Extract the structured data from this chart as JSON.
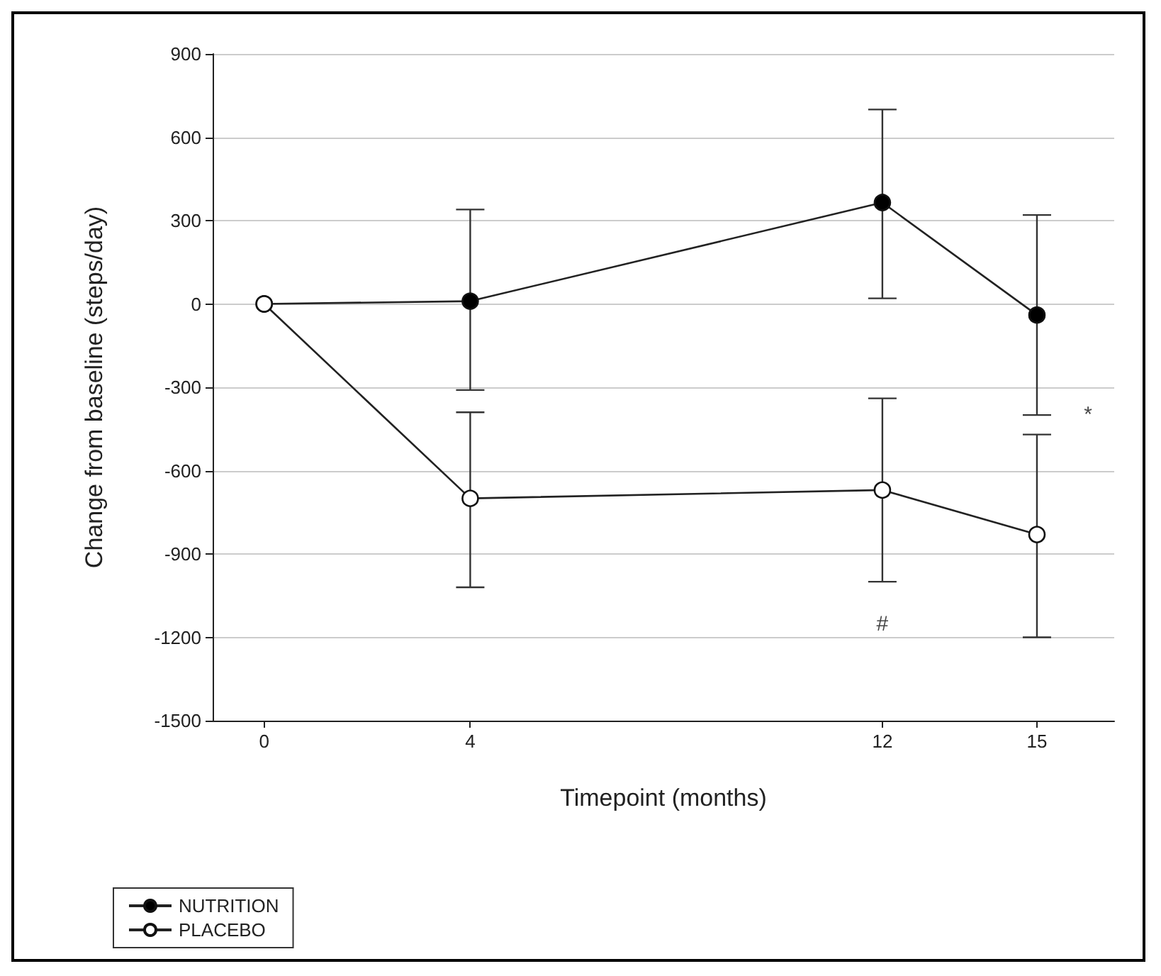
{
  "chart_data": {
    "type": "line",
    "xlabel": "Timepoint (months)",
    "ylabel": "Change from baseline (steps/day)",
    "xlim": [
      -1,
      16.5
    ],
    "xticks": [
      0,
      4,
      12,
      15
    ],
    "ylim": [
      -1500,
      900
    ],
    "yticks": [
      -1500,
      -1200,
      -900,
      -600,
      -300,
      0,
      300,
      600,
      900
    ],
    "grid": "y",
    "legend": "bottom left",
    "marker": "circle",
    "line_style": "solid",
    "annotations": [
      {
        "text": "*",
        "x": 15,
        "y": -400
      },
      {
        "text": "#",
        "x": 12,
        "y": -1000
      }
    ],
    "series": [
      {
        "name": "NUTRITION",
        "color": "#000000",
        "x": [
          0,
          4,
          12,
          15
        ],
        "values": [
          0,
          10,
          365,
          -40
        ],
        "errors": [
          null,
          [
            -310,
            340
          ],
          [
            20,
            700
          ],
          [
            -400,
            320
          ]
        ]
      },
      {
        "name": "PLACEBO",
        "color": "#ffffff",
        "x": [
          0,
          4,
          12,
          15
        ],
        "values": [
          0,
          -700,
          -670,
          -830
        ],
        "errors": [
          null,
          [
            -1020,
            -390
          ],
          [
            -1000,
            -340
          ],
          [
            -1200,
            -470
          ]
        ]
      }
    ]
  }
}
